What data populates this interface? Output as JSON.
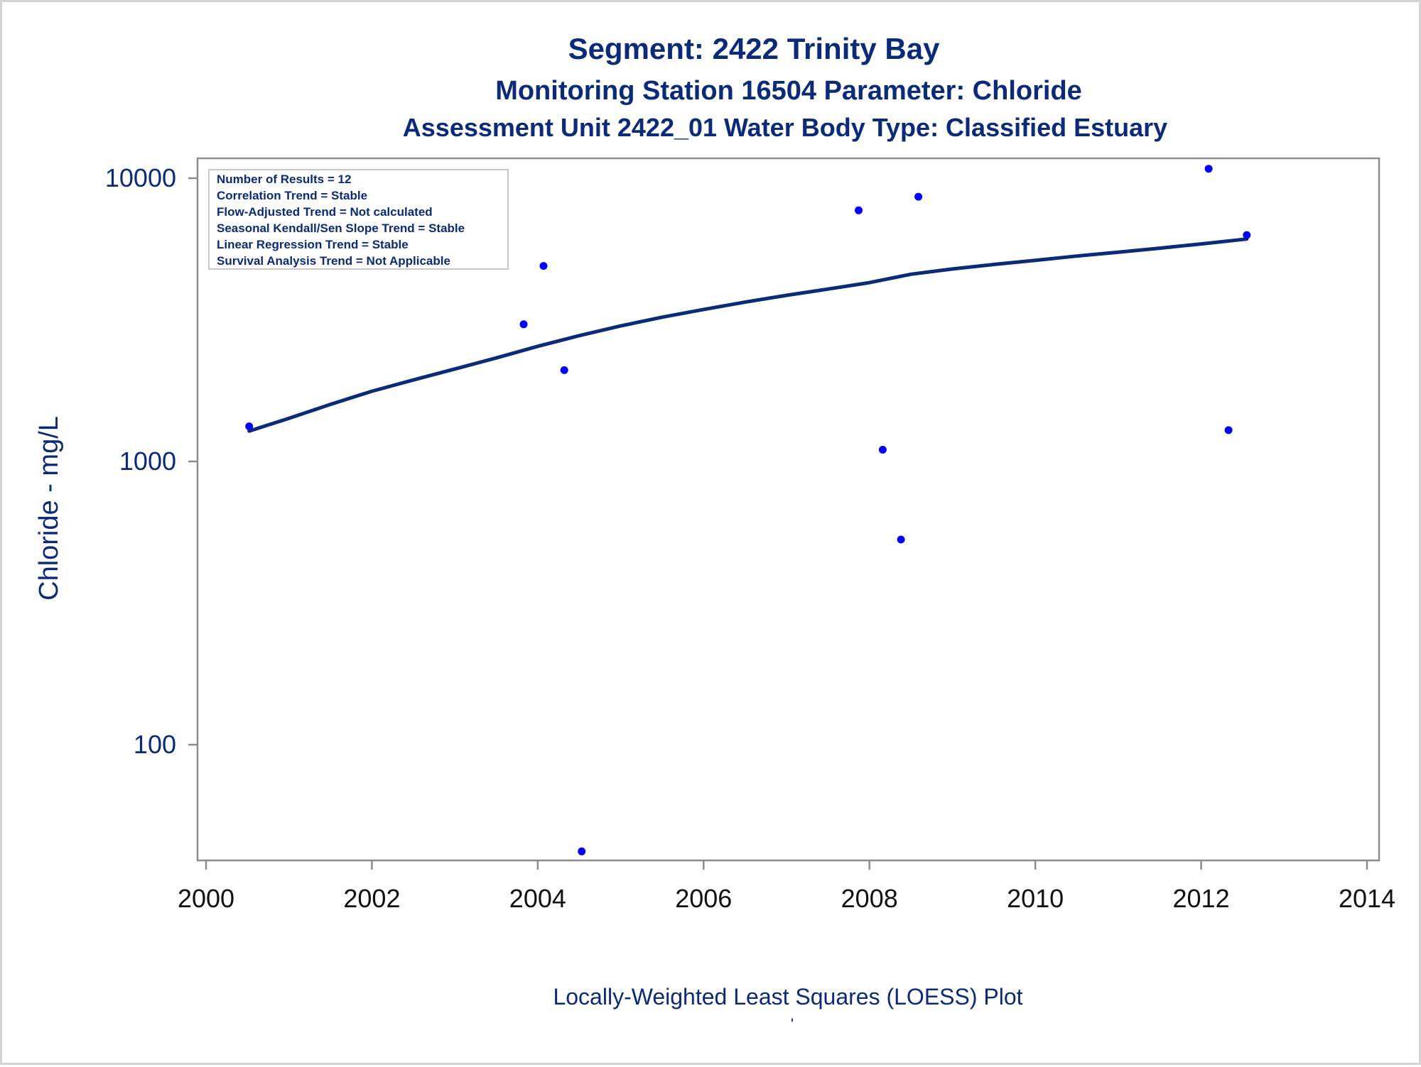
{
  "chart_data": {
    "type": "scatter",
    "title": "Segment: 2422  Trinity Bay",
    "subtitle": "Monitoring Station 16504 Parameter: Chloride",
    "subtitle2": "Assessment Unit 2422_01   Water Body Type: Classified Estuary",
    "ylabel": "Chloride - mg/L",
    "footnote": "Locally-Weighted Least Squares (LOESS) Plot",
    "footnote_mark": "'",
    "y_scale": "log",
    "xlim": [
      2000,
      2014
    ],
    "ylim": [
      40,
      12000
    ],
    "x_ticks": [
      2000,
      2002,
      2004,
      2006,
      2008,
      2010,
      2012,
      2014
    ],
    "y_ticks": [
      100,
      1000,
      10000
    ],
    "legend_position": "top-left",
    "stats": [
      "Number of Results = 12",
      "Correlation Trend = Stable",
      "Flow-Adjusted Trend = Not calculated",
      "Seasonal Kendall/Sen Slope Trend = Stable",
      "Linear Regression Trend = Stable",
      "Survival Analysis Trend = Not Applicable"
    ],
    "points": [
      {
        "x": 2000.52,
        "y": 1330
      },
      {
        "x": 2003.83,
        "y": 3050
      },
      {
        "x": 2004.07,
        "y": 4900
      },
      {
        "x": 2004.32,
        "y": 2100
      },
      {
        "x": 2004.53,
        "y": 42
      },
      {
        "x": 2007.87,
        "y": 7700
      },
      {
        "x": 2008.16,
        "y": 1100
      },
      {
        "x": 2008.38,
        "y": 530
      },
      {
        "x": 2008.59,
        "y": 8600
      },
      {
        "x": 2012.09,
        "y": 10800
      },
      {
        "x": 2012.33,
        "y": 1290
      },
      {
        "x": 2012.55,
        "y": 6300
      }
    ],
    "loess": [
      {
        "x": 2000.52,
        "y": 1280
      },
      {
        "x": 2001.0,
        "y": 1420
      },
      {
        "x": 2001.5,
        "y": 1590
      },
      {
        "x": 2002.0,
        "y": 1770
      },
      {
        "x": 2002.5,
        "y": 1940
      },
      {
        "x": 2003.0,
        "y": 2120
      },
      {
        "x": 2003.5,
        "y": 2320
      },
      {
        "x": 2004.0,
        "y": 2550
      },
      {
        "x": 2004.5,
        "y": 2780
      },
      {
        "x": 2005.0,
        "y": 3010
      },
      {
        "x": 2005.5,
        "y": 3230
      },
      {
        "x": 2006.0,
        "y": 3440
      },
      {
        "x": 2006.5,
        "y": 3650
      },
      {
        "x": 2007.0,
        "y": 3860
      },
      {
        "x": 2007.5,
        "y": 4060
      },
      {
        "x": 2008.0,
        "y": 4280
      },
      {
        "x": 2008.5,
        "y": 4580
      },
      {
        "x": 2009.0,
        "y": 4780
      },
      {
        "x": 2009.5,
        "y": 4960
      },
      {
        "x": 2010.0,
        "y": 5130
      },
      {
        "x": 2010.5,
        "y": 5310
      },
      {
        "x": 2011.0,
        "y": 5480
      },
      {
        "x": 2011.5,
        "y": 5660
      },
      {
        "x": 2012.0,
        "y": 5860
      },
      {
        "x": 2012.55,
        "y": 6100
      }
    ],
    "colors": {
      "text": "#0b2a78",
      "markers": "#0000ff",
      "loess_line": "#0b2a78",
      "axes": "#8c8c8c",
      "tick_labels_x": "#111111"
    }
  }
}
